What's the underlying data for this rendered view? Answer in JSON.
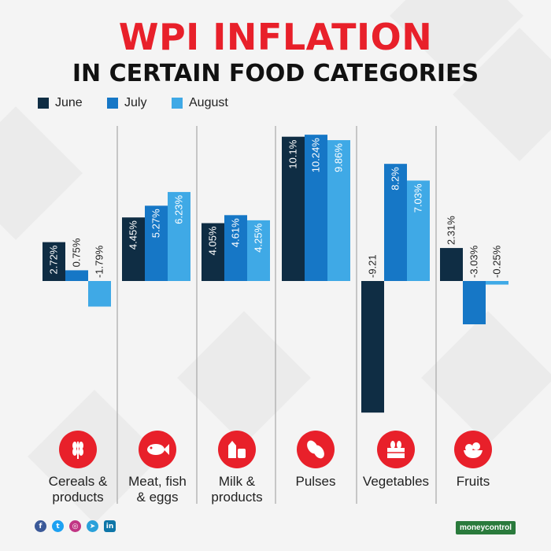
{
  "title_line1": "WPI INFLATION",
  "title_line2": "IN CERTAIN FOOD CATEGORIES",
  "legend": [
    {
      "label": "June",
      "color": "#0f2d44"
    },
    {
      "label": "July",
      "color": "#1677c6"
    },
    {
      "label": "August",
      "color": "#3fa9e6"
    }
  ],
  "categories": [
    {
      "label": "Cereals &\nproducts",
      "icon": "wheat-icon"
    },
    {
      "label": "Meat, fish\n& eggs",
      "icon": "fish-icon"
    },
    {
      "label": "Milk &\nproducts",
      "icon": "milk-icon"
    },
    {
      "label": "Pulses",
      "icon": "beans-icon"
    },
    {
      "label": "Vegetables",
      "icon": "vegetable-crate-icon"
    },
    {
      "label": "Fruits",
      "icon": "fruit-bowl-icon"
    }
  ],
  "chart_data": {
    "type": "bar",
    "title": "WPI INFLATION IN CERTAIN FOOD CATEGORIES",
    "categories": [
      "Cereals & products",
      "Meat, fish & eggs",
      "Milk & products",
      "Pulses",
      "Vegetables",
      "Fruits"
    ],
    "series": [
      {
        "name": "June",
        "values": [
          2.72,
          4.45,
          4.05,
          10.1,
          -9.21,
          2.31
        ],
        "labels": [
          "2.72%",
          "4.45%",
          "4.05%",
          "10.1%",
          "-9.21",
          "2.31%"
        ]
      },
      {
        "name": "July",
        "values": [
          0.75,
          5.27,
          4.61,
          10.24,
          8.2,
          -3.03
        ],
        "labels": [
          "0.75%",
          "5.27%",
          "4.61%",
          "10.24%",
          "8.2%",
          "-3.03%"
        ]
      },
      {
        "name": "August",
        "values": [
          -1.79,
          6.23,
          4.25,
          9.86,
          7.03,
          -0.25
        ],
        "labels": [
          "-1.79%",
          "6.23%",
          "4.25%",
          "9.86%",
          "7.03%",
          "-0.25%"
        ]
      }
    ],
    "xlabel": "",
    "ylabel": "",
    "grid": false,
    "legend_position": "top-left"
  },
  "footer": {
    "social_icons": [
      "facebook-icon",
      "twitter-icon",
      "instagram-icon",
      "telegram-icon",
      "linkedin-icon"
    ],
    "brand": "moneycontrol"
  }
}
